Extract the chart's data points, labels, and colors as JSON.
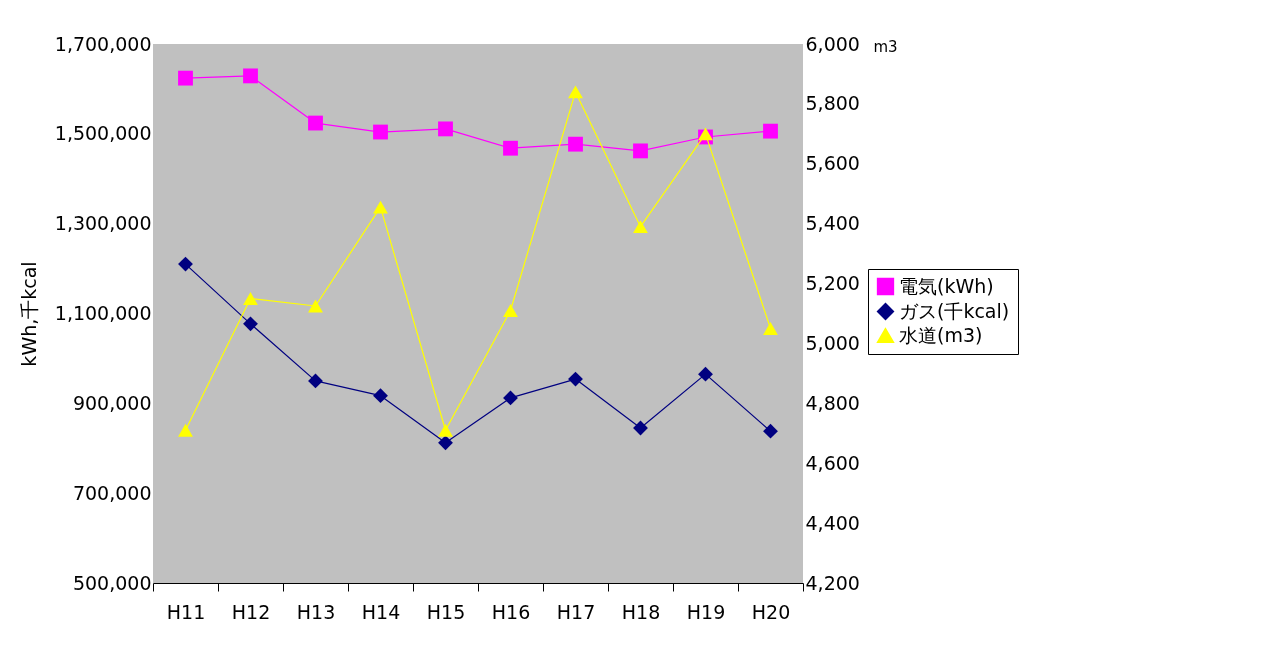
{
  "chart_data": {
    "type": "line",
    "categories": [
      "H11",
      "H12",
      "H13",
      "H14",
      "H15",
      "H16",
      "H17",
      "H18",
      "H19",
      "H20"
    ],
    "ylabel": "kWh,千kcal",
    "y2label": "m3",
    "ylim": [
      500000,
      1700000
    ],
    "yticks": [
      {
        "value": 500000,
        "label": "500,000"
      },
      {
        "value": 700000,
        "label": "700,000"
      },
      {
        "value": 900000,
        "label": "900,000"
      },
      {
        "value": 1100000,
        "label": "1,100,000"
      },
      {
        "value": 1300000,
        "label": "1,300,000"
      },
      {
        "value": 1500000,
        "label": "1,500,000"
      },
      {
        "value": 1700000,
        "label": "1,700,000"
      }
    ],
    "y2lim": [
      4200,
      6000
    ],
    "y2ticks": [
      {
        "value": 4200,
        "label": "4,200"
      },
      {
        "value": 4400,
        "label": "4,400"
      },
      {
        "value": 4600,
        "label": "4,600"
      },
      {
        "value": 4800,
        "label": "4,800"
      },
      {
        "value": 5000,
        "label": "5,000"
      },
      {
        "value": 5200,
        "label": "5,200"
      },
      {
        "value": 5400,
        "label": "5,400"
      },
      {
        "value": 5600,
        "label": "5,600"
      },
      {
        "value": 5800,
        "label": "5,800"
      },
      {
        "value": 6000,
        "label": "6,000"
      }
    ],
    "grid": false,
    "legend": "right",
    "line_style": "solid",
    "series": [
      {
        "name": "電気(kWh)",
        "color": "#ff00ff",
        "marker": "square",
        "values": [
          1624000,
          1629000,
          1524000,
          1504000,
          1511000,
          1468000,
          1477000,
          1462000,
          1493000,
          1506000
        ]
      },
      {
        "name": "ガス(千kcal)",
        "color": "#000080",
        "marker": "diamond",
        "values": [
          1210000,
          1077000,
          950000,
          917000,
          812000,
          912000,
          954000,
          845000,
          965000,
          838000
        ]
      },
      {
        "name": "水道(m3)",
        "color": "#ffff00",
        "marker": "triangle",
        "axis": "y2",
        "values": [
          4710,
          5150,
          5125,
          5455,
          4710,
          5110,
          5840,
          5390,
          5700,
          5050
        ]
      }
    ]
  }
}
